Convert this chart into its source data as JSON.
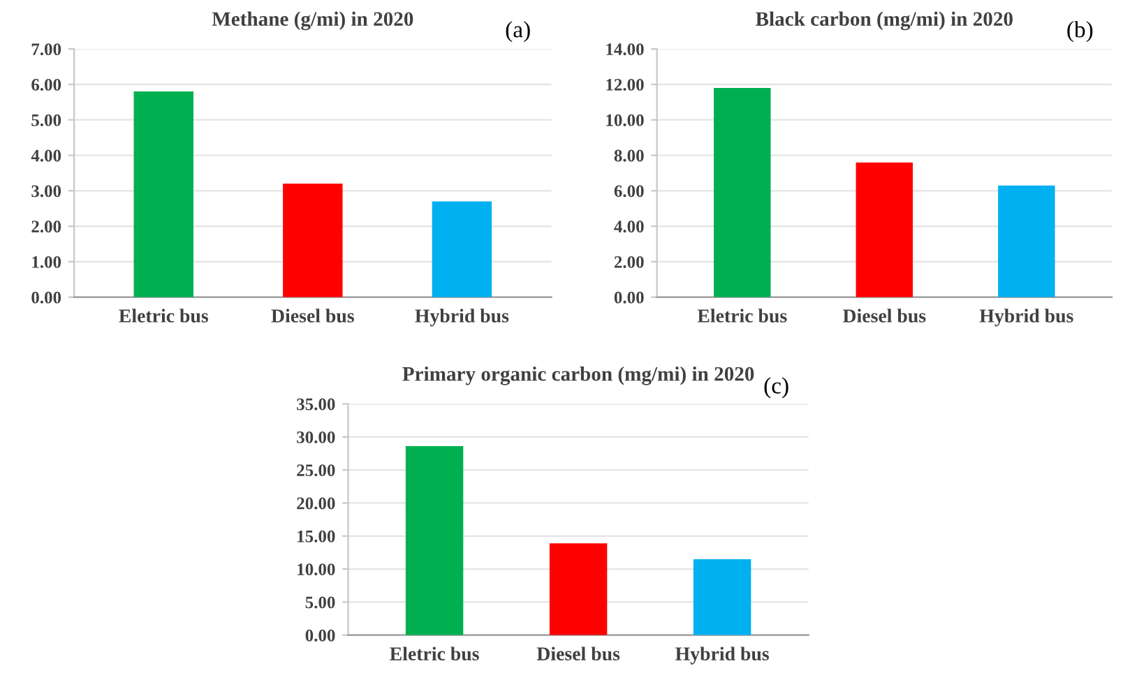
{
  "chart_data": [
    {
      "type": "bar",
      "title": "Methane (g/mi) in 2020",
      "annotations": [
        "(a)"
      ],
      "categories": [
        "Eletric bus",
        "Diesel bus",
        "Hybrid bus"
      ],
      "values": [
        5.8,
        3.2,
        2.7
      ],
      "colors": [
        "#00b050",
        "#ff0000",
        "#00b0f0"
      ],
      "ylim": [
        0,
        7
      ],
      "yticks": [
        {
          "value": 0,
          "label": "0.00"
        },
        {
          "value": 1,
          "label": "1.00"
        },
        {
          "value": 2,
          "label": "2.00"
        },
        {
          "value": 3,
          "label": "3.00"
        },
        {
          "value": 4,
          "label": "4.00"
        },
        {
          "value": 5,
          "label": "5.00"
        },
        {
          "value": 6,
          "label": "6.00"
        },
        {
          "value": 7,
          "label": "7.00"
        }
      ],
      "grid": "y"
    },
    {
      "type": "bar",
      "title": "Black carbon (mg/mi) in 2020",
      "annotations": [
        "(b)"
      ],
      "categories": [
        "Eletric bus",
        "Diesel bus",
        "Hybrid bus"
      ],
      "values": [
        11.8,
        7.6,
        6.3
      ],
      "colors": [
        "#00b050",
        "#ff0000",
        "#00b0f0"
      ],
      "ylim": [
        0,
        14
      ],
      "yticks": [
        {
          "value": 0,
          "label": "0.00"
        },
        {
          "value": 2,
          "label": "2.00"
        },
        {
          "value": 4,
          "label": "4.00"
        },
        {
          "value": 6,
          "label": "6.00"
        },
        {
          "value": 8,
          "label": "8.00"
        },
        {
          "value": 10,
          "label": "10.00"
        },
        {
          "value": 12,
          "label": "12.00"
        },
        {
          "value": 14,
          "label": "14.00"
        }
      ],
      "grid": "y"
    },
    {
      "type": "bar",
      "title": "Primary organic carbon (mg/mi) in 2020",
      "annotations": [
        "(c)"
      ],
      "categories": [
        "Eletric bus",
        "Diesel bus",
        "Hybrid bus"
      ],
      "values": [
        28.6,
        13.9,
        11.5
      ],
      "colors": [
        "#00b050",
        "#ff0000",
        "#00b0f0"
      ],
      "ylim": [
        0,
        35
      ],
      "yticks": [
        {
          "value": 0,
          "label": "0.00"
        },
        {
          "value": 5,
          "label": "5.00"
        },
        {
          "value": 10,
          "label": "10.00"
        },
        {
          "value": 15,
          "label": "15.00"
        },
        {
          "value": 20,
          "label": "20.00"
        },
        {
          "value": 25,
          "label": "25.00"
        },
        {
          "value": 30,
          "label": "30.00"
        },
        {
          "value": 35,
          "label": "35.00"
        }
      ],
      "grid": "y"
    }
  ]
}
